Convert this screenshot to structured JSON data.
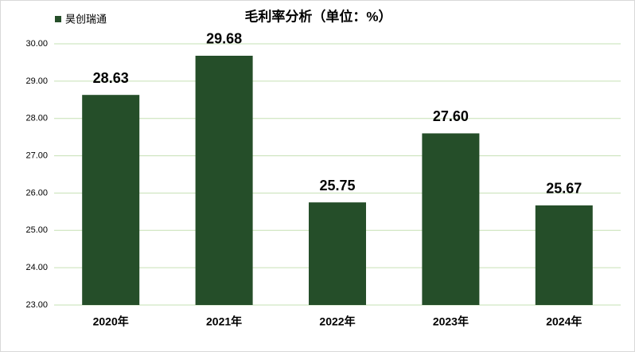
{
  "chart_data": {
    "type": "bar",
    "title": "毛利率分析（单位：%）",
    "series": [
      {
        "name": "昊创瑞通",
        "color": "#254e29",
        "values": [
          28.63,
          29.68,
          25.75,
          27.6,
          25.67
        ],
        "value_labels": [
          "28.63",
          "29.68",
          "25.75",
          "27.60",
          "25.67"
        ]
      }
    ],
    "categories": [
      "2020年",
      "2021年",
      "2022年",
      "2023年",
      "2024年"
    ],
    "ylim": [
      23,
      30
    ],
    "yticks": [
      {
        "value": 23,
        "label": "23.00"
      },
      {
        "value": 24,
        "label": "24.00"
      },
      {
        "value": 25,
        "label": "25.00"
      },
      {
        "value": 26,
        "label": "26.00"
      },
      {
        "value": 27,
        "label": "27.00"
      },
      {
        "value": 28,
        "label": "28.00"
      },
      {
        "value": 29,
        "label": "29.00"
      },
      {
        "value": 30,
        "label": "30.00"
      }
    ],
    "grid": true,
    "grid_color": "#c6e0b4"
  }
}
